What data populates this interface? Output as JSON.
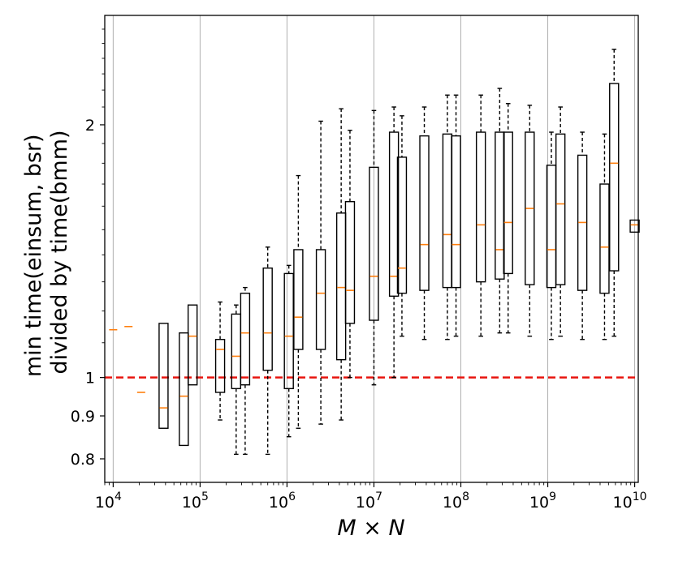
{
  "chart_data": {
    "type": "box",
    "title": "",
    "xlabel": "M × N",
    "ylabel": [
      "min time(einsum, bsr)",
      "divided by time(bmm)"
    ],
    "x_scale": "log",
    "y_scale": "log",
    "xlim": [
      8000,
      11000000000
    ],
    "ylim": [
      0.75,
      2.7
    ],
    "grid": "vertical at x decades",
    "x_ticks": [
      {
        "base": "10",
        "exp": "4",
        "value": 10000
      },
      {
        "base": "10",
        "exp": "5",
        "value": 100000
      },
      {
        "base": "10",
        "exp": "6",
        "value": 1000000
      },
      {
        "base": "10",
        "exp": "7",
        "value": 10000000
      },
      {
        "base": "10",
        "exp": "8",
        "value": 100000000
      },
      {
        "base": "10",
        "exp": "9",
        "value": 1000000000
      },
      {
        "base": "10",
        "exp": "10",
        "value": 10000000000
      }
    ],
    "y_ticks": [
      {
        "label": "0.8",
        "value": 0.8
      },
      {
        "label": "0.9",
        "value": 0.9
      },
      {
        "label": "1",
        "value": 1.0
      },
      {
        "label": "2",
        "value": 2.0
      }
    ],
    "reference_line": {
      "y": 1.0,
      "color": "#e8150f",
      "style": "dashed"
    },
    "box_color": "#000000",
    "median_color": "#ff7f0e",
    "boxes": [
      {
        "x": 10000,
        "whislo": 1.14,
        "q1": 1.14,
        "med": 1.14,
        "q3": 1.14,
        "whishi": 1.14
      },
      {
        "x": 15000,
        "whislo": 1.15,
        "q1": 1.15,
        "med": 1.15,
        "q3": 1.15,
        "whishi": 1.15
      },
      {
        "x": 21000,
        "whislo": 0.96,
        "q1": 0.96,
        "med": 0.96,
        "q3": 0.96,
        "whishi": 0.96
      },
      {
        "x": 38000,
        "whislo": 0.87,
        "q1": 0.87,
        "med": 0.92,
        "q3": 1.16,
        "whishi": 1.16
      },
      {
        "x": 65000,
        "whislo": 0.83,
        "q1": 0.83,
        "med": 0.95,
        "q3": 1.13,
        "whishi": 1.13
      },
      {
        "x": 82000,
        "whislo": 0.98,
        "q1": 0.98,
        "med": 1.12,
        "q3": 1.22,
        "whishi": 1.22
      },
      {
        "x": 170000,
        "whislo": 0.89,
        "q1": 0.96,
        "med": 1.08,
        "q3": 1.11,
        "whishi": 1.23
      },
      {
        "x": 260000,
        "whislo": 0.81,
        "q1": 0.97,
        "med": 1.06,
        "q3": 1.19,
        "whishi": 1.22
      },
      {
        "x": 330000,
        "whislo": 0.81,
        "q1": 0.98,
        "med": 1.13,
        "q3": 1.26,
        "whishi": 1.28
      },
      {
        "x": 600000,
        "whislo": 0.81,
        "q1": 1.02,
        "med": 1.13,
        "q3": 1.35,
        "whishi": 1.43
      },
      {
        "x": 1050000,
        "whislo": 0.85,
        "q1": 0.97,
        "med": 1.12,
        "q3": 1.33,
        "whishi": 1.36
      },
      {
        "x": 1350000,
        "whislo": 0.87,
        "q1": 1.08,
        "med": 1.18,
        "q3": 1.42,
        "whishi": 1.74
      },
      {
        "x": 2450000,
        "whislo": 0.88,
        "q1": 1.08,
        "med": 1.26,
        "q3": 1.42,
        "whishi": 2.02
      },
      {
        "x": 4200000,
        "whislo": 0.89,
        "q1": 1.05,
        "med": 1.28,
        "q3": 1.57,
        "whishi": 2.09
      },
      {
        "x": 5300000,
        "whislo": 1.0,
        "q1": 1.16,
        "med": 1.27,
        "q3": 1.62,
        "whishi": 1.97
      },
      {
        "x": 10000000,
        "whislo": 0.98,
        "q1": 1.17,
        "med": 1.32,
        "q3": 1.78,
        "whishi": 2.08
      },
      {
        "x": 17000000,
        "whislo": 1.0,
        "q1": 1.25,
        "med": 1.32,
        "q3": 1.96,
        "whishi": 2.1
      },
      {
        "x": 21000000,
        "whislo": 1.12,
        "q1": 1.26,
        "med": 1.35,
        "q3": 1.83,
        "whishi": 2.05
      },
      {
        "x": 38000000,
        "whislo": 1.11,
        "q1": 1.27,
        "med": 1.44,
        "q3": 1.94,
        "whishi": 2.1
      },
      {
        "x": 70000000,
        "whislo": 1.11,
        "q1": 1.28,
        "med": 1.48,
        "q3": 1.95,
        "whishi": 2.17
      },
      {
        "x": 88000000,
        "whislo": 1.12,
        "q1": 1.28,
        "med": 1.44,
        "q3": 1.94,
        "whishi": 2.17
      },
      {
        "x": 170000000,
        "whislo": 1.12,
        "q1": 1.3,
        "med": 1.52,
        "q3": 1.96,
        "whishi": 2.17
      },
      {
        "x": 280000000,
        "whislo": 1.13,
        "q1": 1.31,
        "med": 1.42,
        "q3": 1.96,
        "whishi": 2.21
      },
      {
        "x": 350000000,
        "whislo": 1.13,
        "q1": 1.33,
        "med": 1.53,
        "q3": 1.96,
        "whishi": 2.12
      },
      {
        "x": 620000000,
        "whislo": 1.12,
        "q1": 1.29,
        "med": 1.59,
        "q3": 1.96,
        "whishi": 2.11
      },
      {
        "x": 1100000000,
        "whislo": 1.11,
        "q1": 1.28,
        "med": 1.42,
        "q3": 1.79,
        "whishi": 1.96
      },
      {
        "x": 1400000000,
        "whislo": 1.12,
        "q1": 1.29,
        "med": 1.61,
        "q3": 1.95,
        "whishi": 2.1
      },
      {
        "x": 2500000000,
        "whislo": 1.11,
        "q1": 1.27,
        "med": 1.53,
        "q3": 1.84,
        "whishi": 1.96
      },
      {
        "x": 4500000000,
        "whislo": 1.11,
        "q1": 1.26,
        "med": 1.43,
        "q3": 1.7,
        "whishi": 1.95
      },
      {
        "x": 5800000000,
        "whislo": 1.12,
        "q1": 1.34,
        "med": 1.8,
        "q3": 2.24,
        "whishi": 2.46
      },
      {
        "x": 10000000000,
        "whislo": 1.49,
        "q1": 1.49,
        "med": 1.52,
        "q3": 1.54,
        "whishi": 1.54
      }
    ]
  }
}
